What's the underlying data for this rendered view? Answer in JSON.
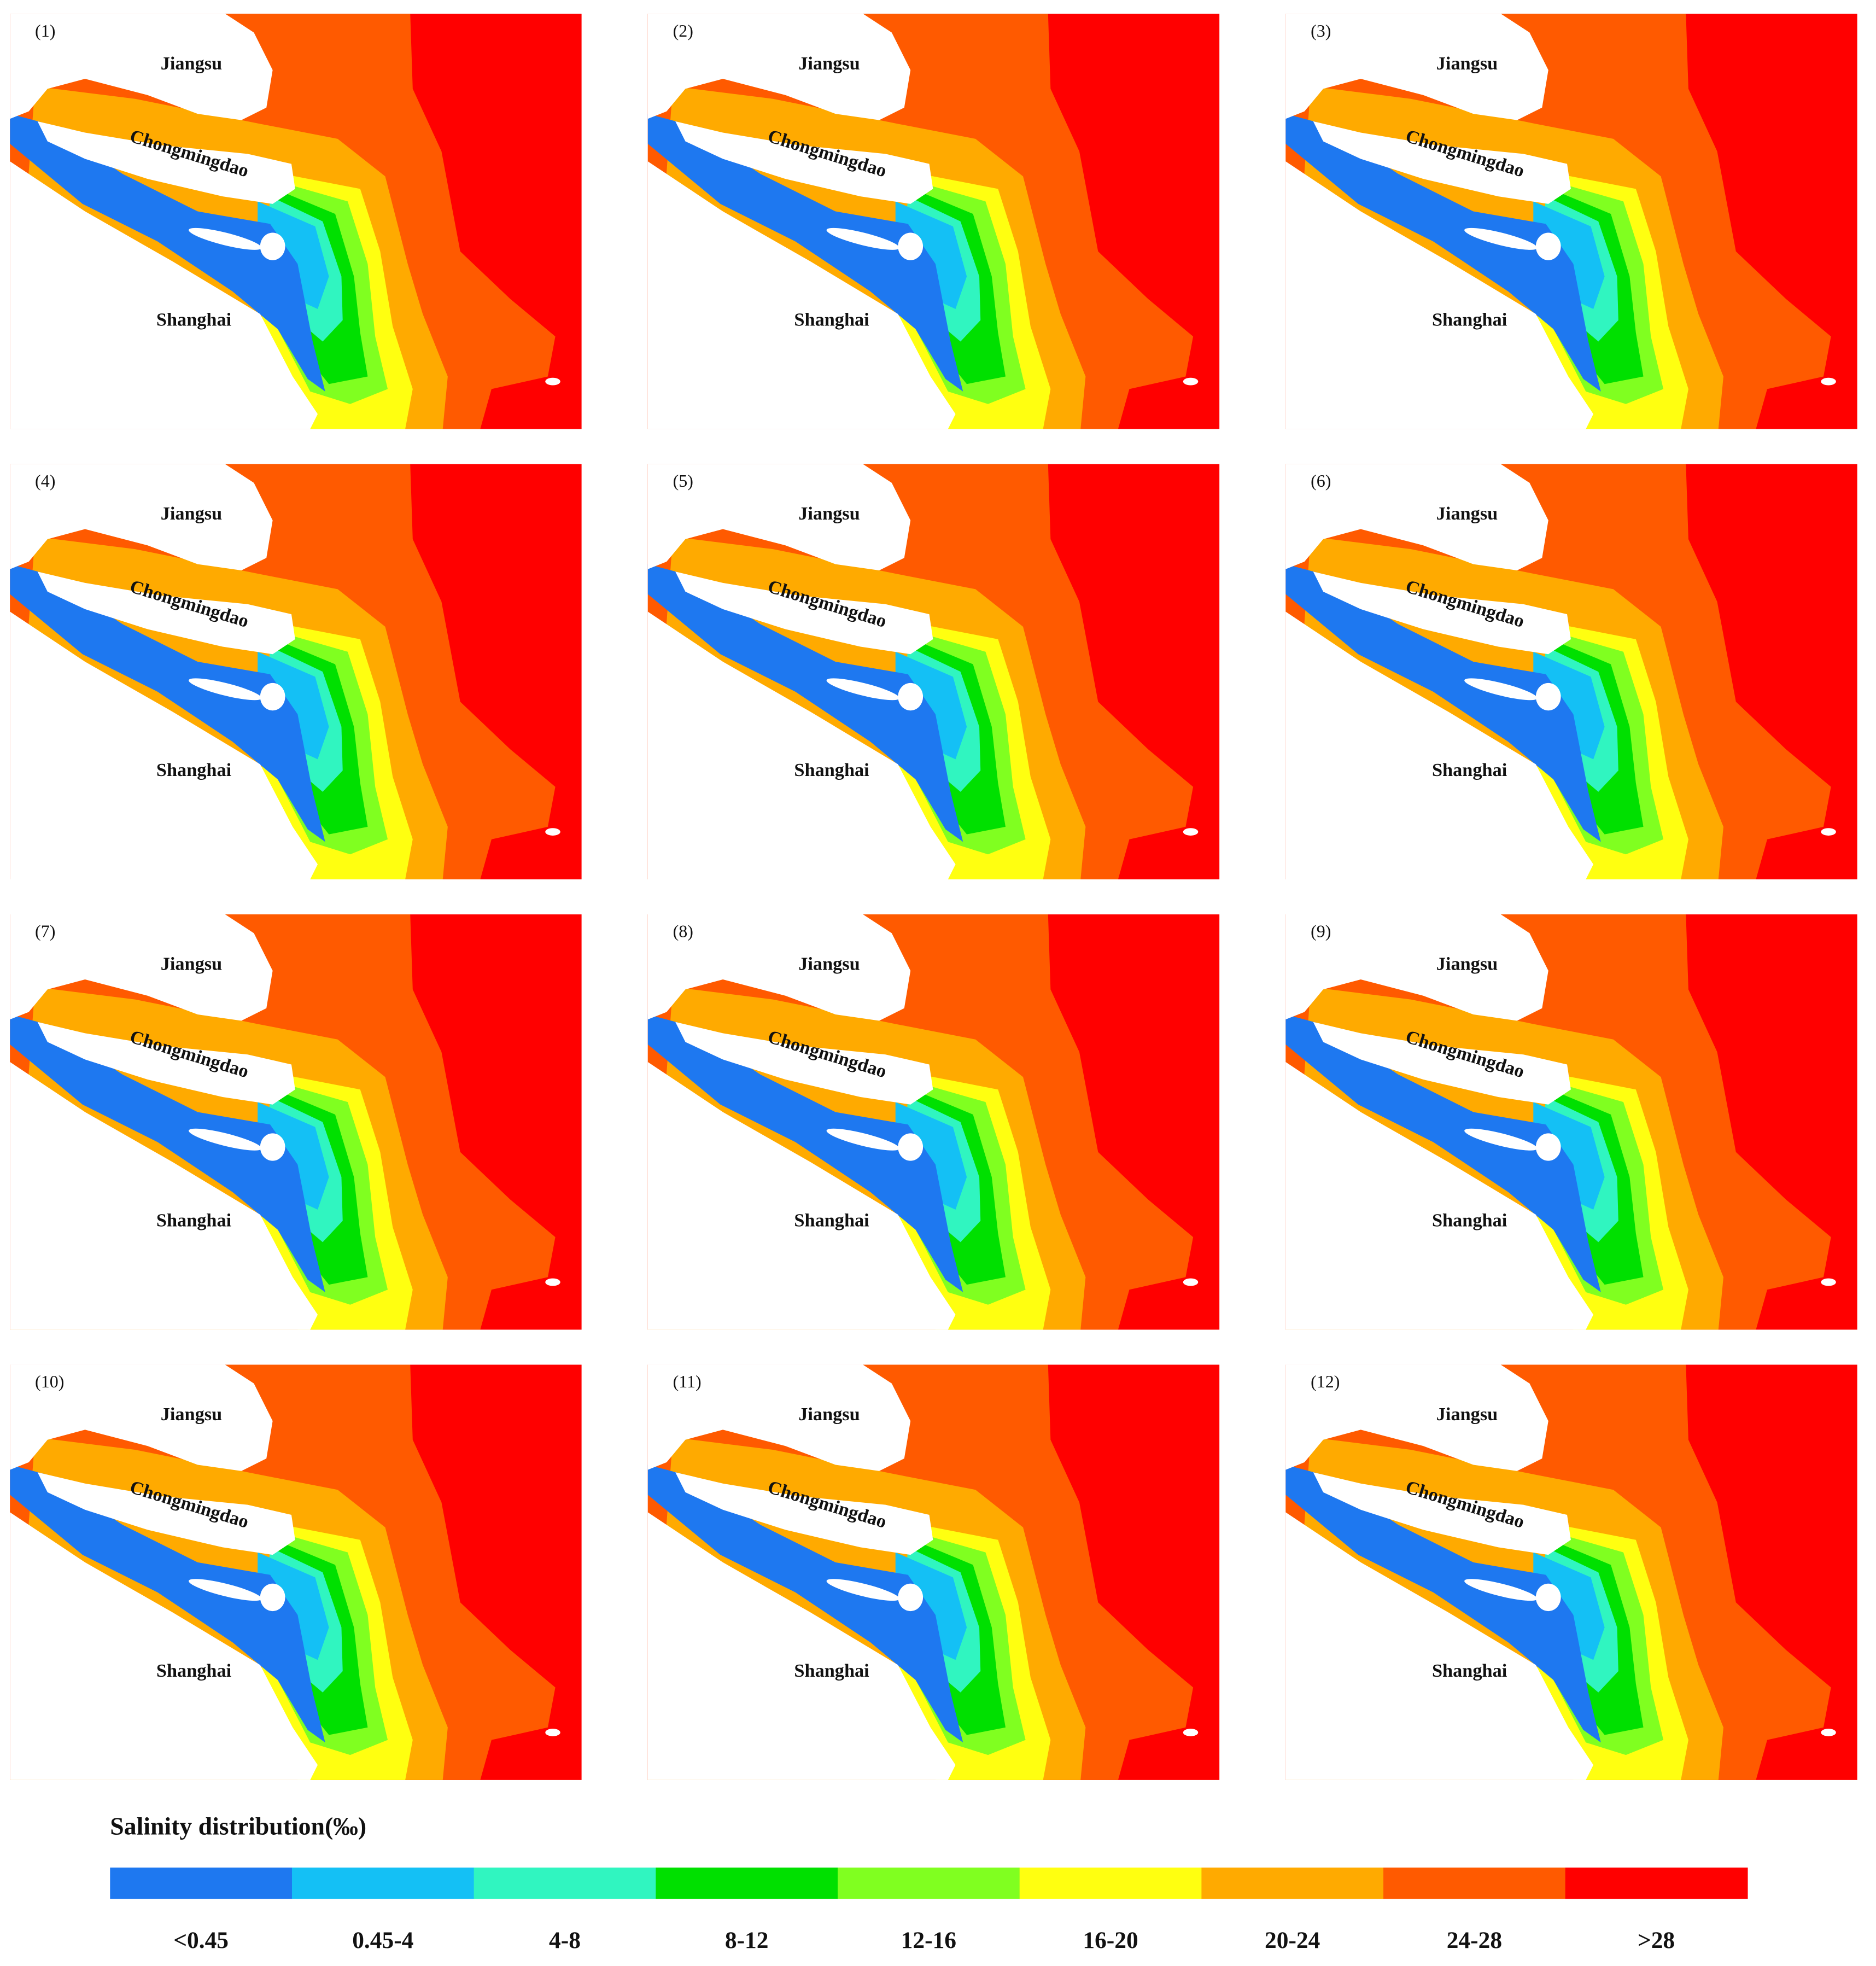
{
  "panels": [
    {
      "label": "(1)",
      "places": {
        "north": "Jiangsu",
        "island": "Chongmingdao",
        "south": "Shanghai"
      }
    },
    {
      "label": "(2)",
      "places": {
        "north": "Jiangsu",
        "island": "Chongmingdao",
        "south": "Shanghai"
      }
    },
    {
      "label": "(3)",
      "places": {
        "north": "Jiangsu",
        "island": "Chongmingdao",
        "south": "Shanghai"
      }
    },
    {
      "label": "(4)",
      "places": {
        "north": "Jiangsu",
        "island": "Chongmingdao",
        "south": "Shanghai"
      }
    },
    {
      "label": "(5)",
      "places": {
        "north": "Jiangsu",
        "island": "Chongmingdao",
        "south": "Shanghai"
      }
    },
    {
      "label": "(6)",
      "places": {
        "north": "Jiangsu",
        "island": "Chongmingdao",
        "south": "Shanghai"
      }
    },
    {
      "label": "(7)",
      "places": {
        "north": "Jiangsu",
        "island": "Chongmingdao",
        "south": "Shanghai"
      }
    },
    {
      "label": "(8)",
      "places": {
        "north": "Jiangsu",
        "island": "Chongmingdao",
        "south": "Shanghai"
      }
    },
    {
      "label": "(9)",
      "places": {
        "north": "Jiangsu",
        "island": "Chongmingdao",
        "south": "Shanghai"
      }
    },
    {
      "label": "(10)",
      "places": {
        "north": "Jiangsu",
        "island": "Chongmingdao",
        "south": "Shanghai"
      }
    },
    {
      "label": "(11)",
      "places": {
        "north": "Jiangsu",
        "island": "Chongmingdao",
        "south": "Shanghai"
      }
    },
    {
      "label": "(12)",
      "places": {
        "north": "Jiangsu",
        "island": "Chongmingdao",
        "south": "Shanghai"
      }
    }
  ],
  "legend": {
    "title": "Salinity distribution(‰)",
    "classes": [
      {
        "label": "<0.45",
        "color": "#1e78f0"
      },
      {
        "label": "0.45-4",
        "color": "#14c0f5"
      },
      {
        "label": "4-8",
        "color": "#30f5c0"
      },
      {
        "label": "8-12",
        "color": "#00e000"
      },
      {
        "label": "12-16",
        "color": "#80ff20"
      },
      {
        "label": "16-20",
        "color": "#ffff10"
      },
      {
        "label": "20-24",
        "color": "#ffaa00"
      },
      {
        "label": "24-28",
        "color": "#ff5a00"
      },
      {
        "label": ">28",
        "color": "#ff0000"
      }
    ]
  }
}
